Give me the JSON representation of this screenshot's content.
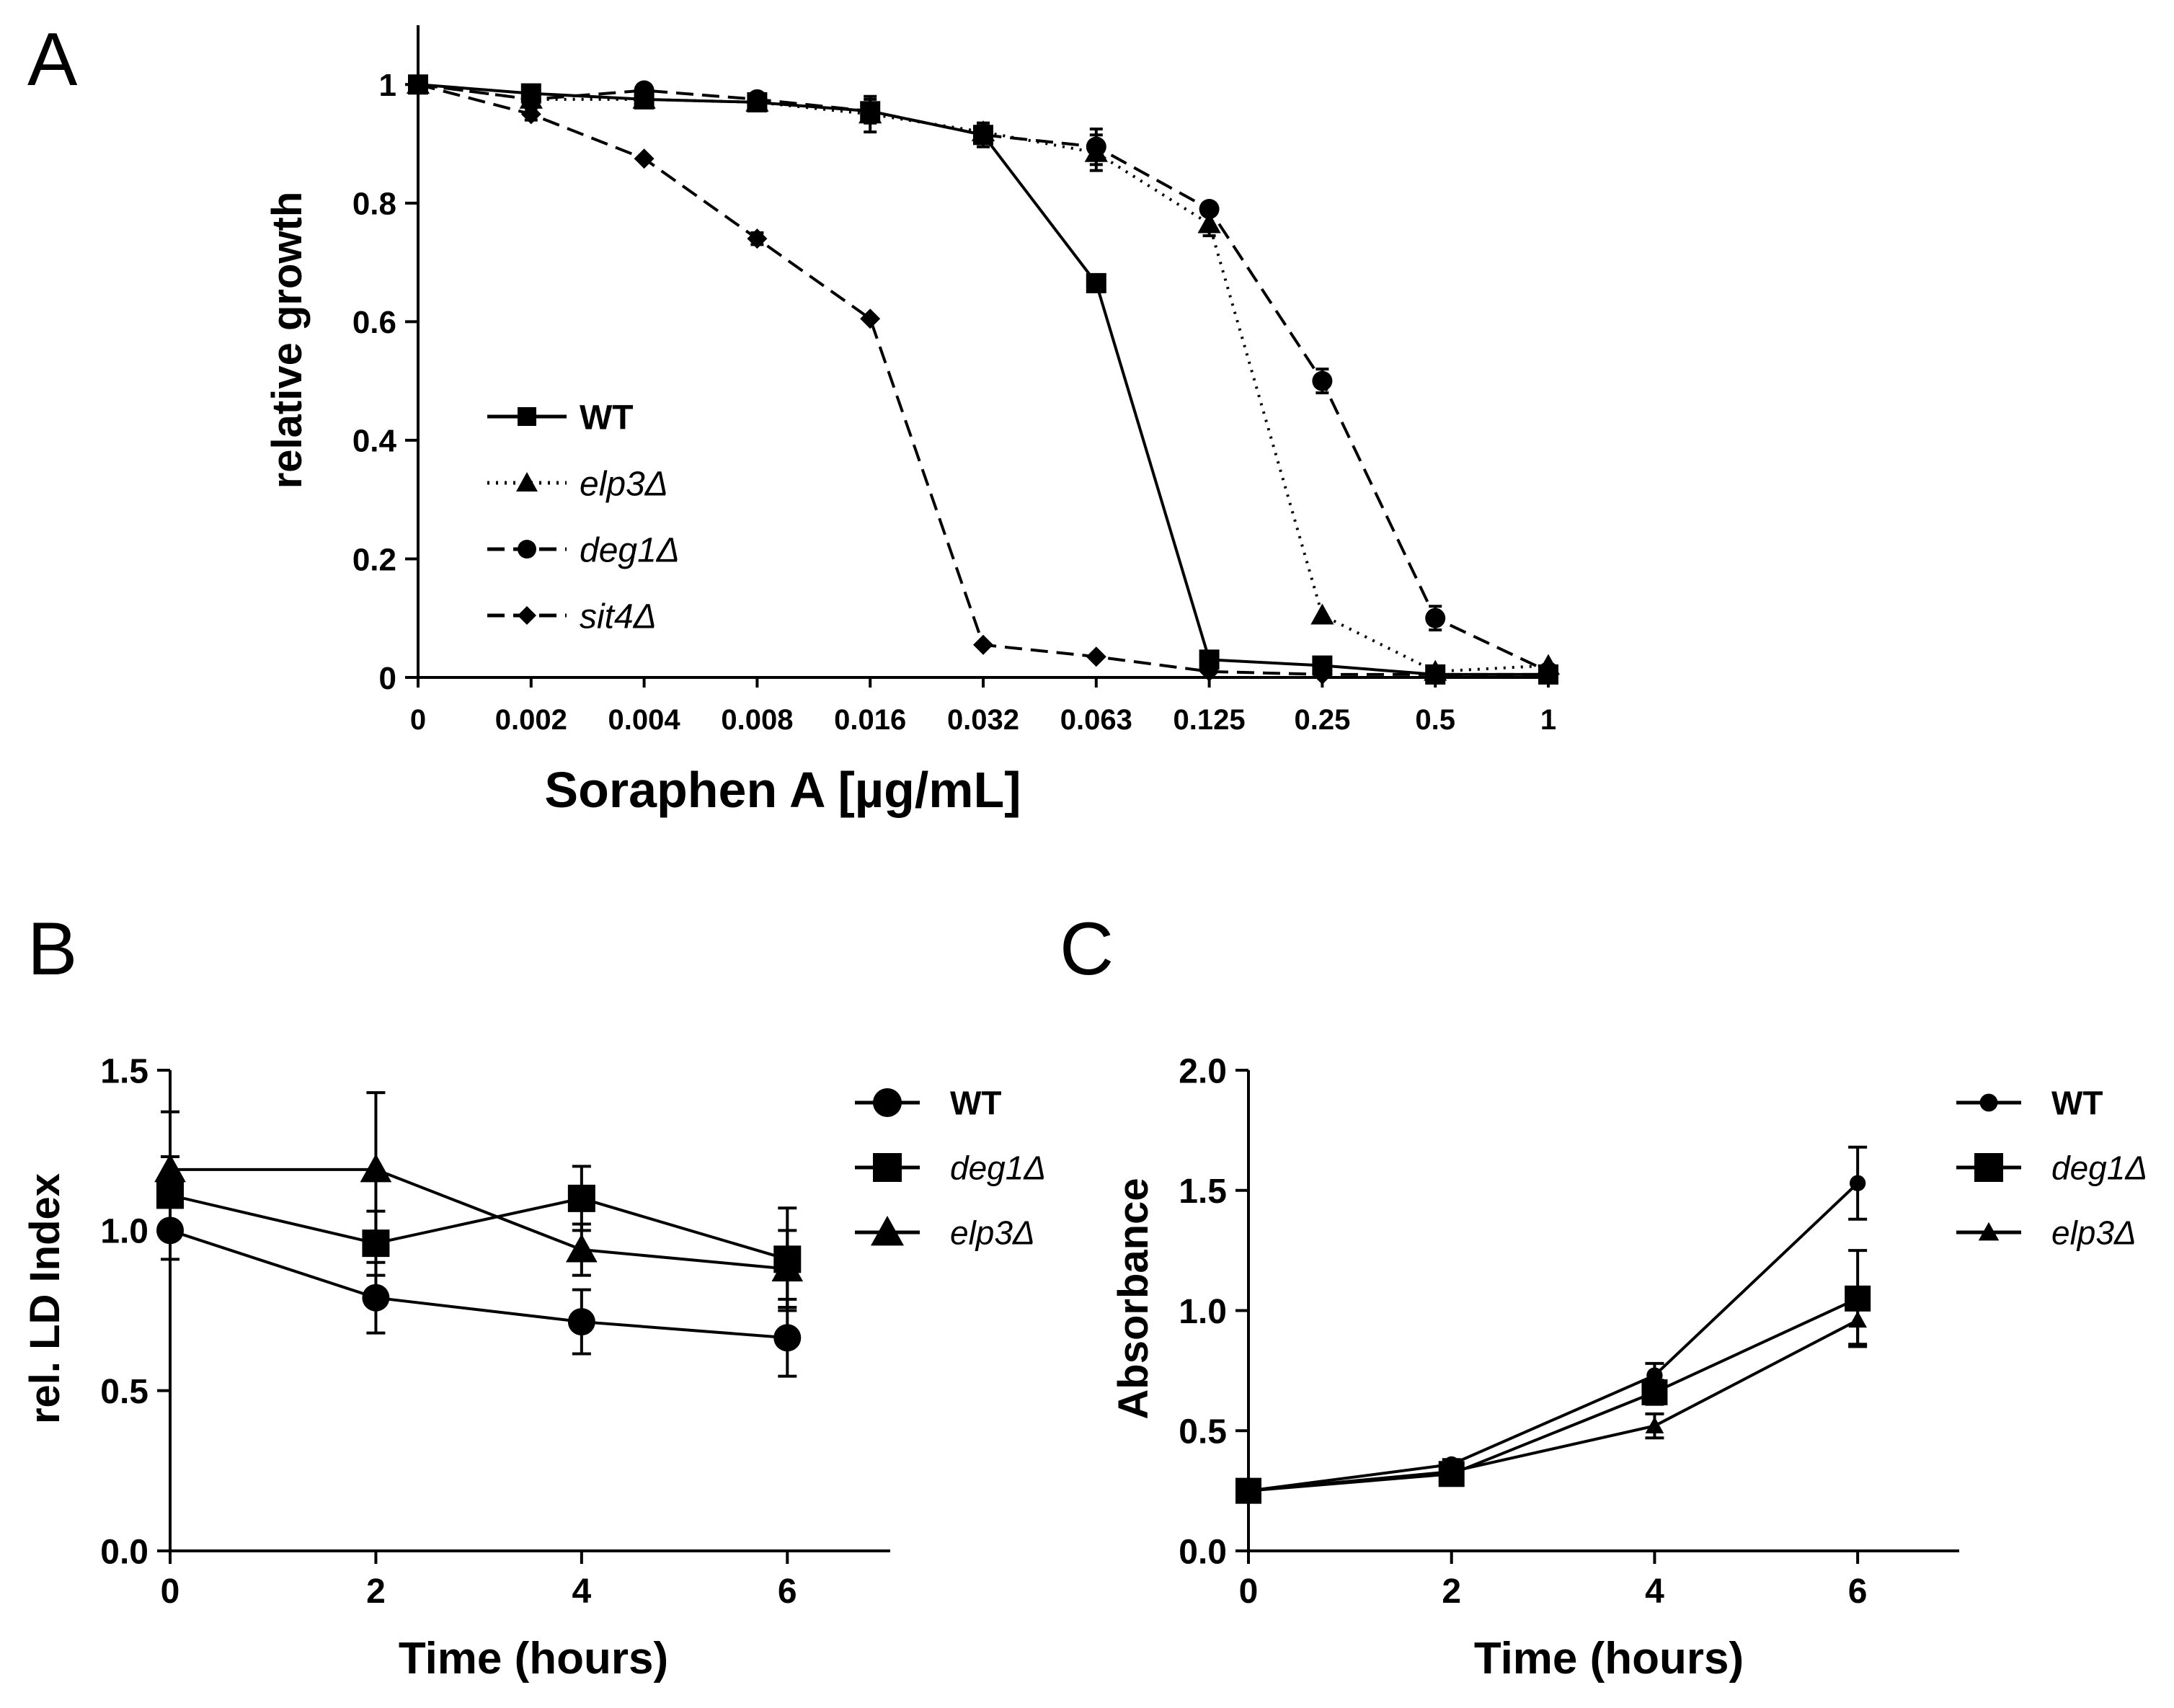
{
  "chart_data": [
    {
      "panel": "A",
      "type": "line",
      "xlabel": "Soraphen A [µg/mL]",
      "ylabel": "relative growth",
      "x_scale": "categorical",
      "categories": [
        "0",
        "0.002",
        "0.004",
        "0.008",
        "0.016",
        "0.032",
        "0.063",
        "0.125",
        "0.25",
        "0.5",
        "1"
      ],
      "yticks": [
        "0",
        "0.2",
        "0.4",
        "0.6",
        "0.8",
        "1"
      ],
      "ylim": [
        0,
        1.1
      ],
      "series": [
        {
          "name": "WT",
          "style": "solid",
          "marker": "square",
          "values": [
            1.0,
            0.985,
            0.975,
            0.97,
            0.955,
            0.915,
            0.665,
            0.03,
            0.02,
            0.005,
            0.005
          ],
          "errors": [
            0,
            0.01,
            0.01,
            0.01,
            0.02,
            0.02,
            0,
            0,
            0,
            0,
            0
          ]
        },
        {
          "name": "elp3Δ",
          "style": "dotted",
          "marker": "triangle",
          "values": [
            1.0,
            0.975,
            0.975,
            0.97,
            0.95,
            0.92,
            0.885,
            0.765,
            0.105,
            0.01,
            0.02
          ],
          "errors": [
            0,
            0.01,
            0.01,
            0.01,
            0.03,
            0.01,
            0.03,
            0.02,
            0,
            0,
            0
          ]
        },
        {
          "name": "deg1Δ",
          "style": "dashed",
          "marker": "circle",
          "values": [
            1.0,
            0.975,
            0.99,
            0.975,
            0.955,
            0.915,
            0.895,
            0.79,
            0.5,
            0.1,
            0.01
          ],
          "errors": [
            0,
            0,
            0,
            0,
            0.01,
            0.02,
            0.03,
            0,
            0.02,
            0.02,
            0
          ]
        },
        {
          "name": "sit4Δ",
          "style": "dashed",
          "marker": "diamond",
          "values": [
            1.0,
            0.95,
            0.875,
            0.74,
            0.605,
            0.055,
            0.035,
            0.01,
            0.005,
            0.005,
            0.005
          ],
          "errors": [
            0,
            0.01,
            0,
            0.01,
            0,
            0,
            0,
            0,
            0,
            0,
            0
          ]
        }
      ],
      "legend": "lower-left"
    },
    {
      "panel": "B",
      "type": "line",
      "xlabel": "Time (hours)",
      "ylabel": "rel. LD Index",
      "x": [
        0,
        2,
        4,
        6
      ],
      "xticks": [
        "0",
        "2",
        "4",
        "6"
      ],
      "yticks": [
        "0.0",
        "0.5",
        "1.0",
        "1.5"
      ],
      "xlim": [
        0,
        7
      ],
      "ylim": [
        0,
        1.5
      ],
      "series": [
        {
          "name": "WT",
          "marker": "circle",
          "values": [
            1.0,
            0.79,
            0.715,
            0.665
          ],
          "errors": [
            0.09,
            0.11,
            0.1,
            0.12
          ]
        },
        {
          "name": "deg1Δ",
          "marker": "square",
          "values": [
            1.11,
            0.96,
            1.1,
            0.91
          ],
          "errors": [
            0.12,
            0.1,
            0.1,
            0.16
          ]
        },
        {
          "name": "elp3Δ",
          "marker": "triangle",
          "values": [
            1.19,
            1.19,
            0.94,
            0.88
          ],
          "errors": [
            0.18,
            0.24,
            0.08,
            0.12
          ]
        }
      ],
      "legend": "right"
    },
    {
      "panel": "C",
      "type": "line",
      "xlabel": "Time (hours)",
      "ylabel": "Absorbance",
      "x": [
        0,
        2,
        4,
        6
      ],
      "xticks": [
        "0",
        "2",
        "4",
        "6"
      ],
      "yticks": [
        "0.0",
        "0.5",
        "1.0",
        "1.5",
        "2.0"
      ],
      "xlim": [
        0,
        7
      ],
      "ylim": [
        0,
        2.0
      ],
      "series": [
        {
          "name": "WT",
          "marker": "circle-small",
          "values": [
            0.25,
            0.36,
            0.73,
            1.53
          ],
          "errors": [
            0,
            0.02,
            0.05,
            0.15
          ]
        },
        {
          "name": "deg1Δ",
          "marker": "square",
          "values": [
            0.25,
            0.32,
            0.66,
            1.05
          ],
          "errors": [
            0,
            0.02,
            0.05,
            0.2
          ]
        },
        {
          "name": "elp3Δ",
          "marker": "triangle-small",
          "values": [
            0.25,
            0.33,
            0.52,
            0.96
          ],
          "errors": [
            0,
            0.02,
            0.05,
            0.1
          ]
        }
      ],
      "legend": "right"
    }
  ],
  "panels": {
    "a": {
      "label": "A"
    },
    "b": {
      "label": "B"
    },
    "c": {
      "label": "C"
    }
  },
  "legend_a": [
    {
      "label": "WT",
      "italic": false
    },
    {
      "label": "elp3Δ",
      "italic": true
    },
    {
      "label": "deg1Δ",
      "italic": true
    },
    {
      "label": "sit4Δ",
      "italic": true
    }
  ],
  "legend_b": [
    {
      "label": "WT",
      "italic": false
    },
    {
      "label": "deg1Δ",
      "italic": true
    },
    {
      "label": "elp3Δ",
      "italic": true
    }
  ],
  "legend_c": [
    {
      "label": "WT",
      "italic": false
    },
    {
      "label": "deg1Δ",
      "italic": true
    },
    {
      "label": "elp3Δ",
      "italic": true
    }
  ],
  "colors": {
    "ink": "#000000",
    "background": "#ffffff"
  }
}
